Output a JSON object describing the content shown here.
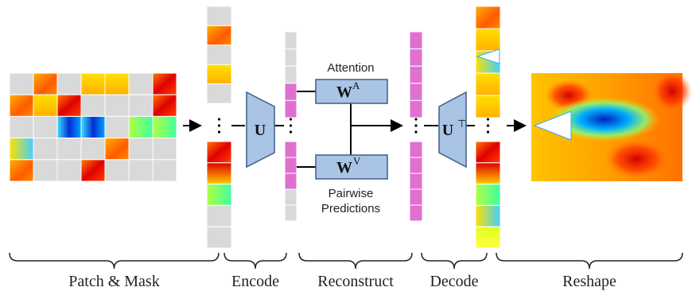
{
  "stages": [
    "Patch & Mask",
    "Encode",
    "Reconstruct",
    "Decode",
    "Reshape"
  ],
  "encoder": {
    "symbol": "U"
  },
  "attention": {
    "caption": "Attention",
    "symbol": "W",
    "superscript": "A"
  },
  "pairwise": {
    "caption": [
      "Pairwise",
      "Predictions"
    ],
    "symbol": "W",
    "superscript": "V"
  },
  "decoder": {
    "symbol": "U",
    "superscript": "⊤"
  }
}
